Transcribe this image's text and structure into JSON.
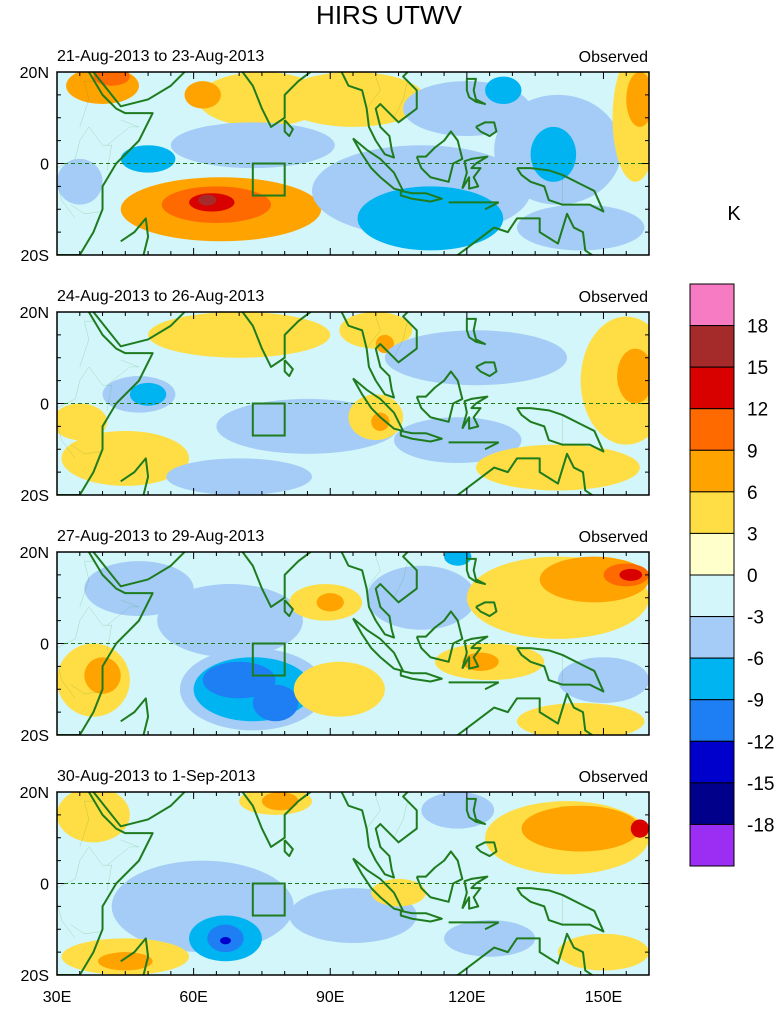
{
  "chart_data": {
    "type": "filled-contour map panels",
    "title": "HIRS UTWV",
    "unit_label": "K",
    "x_ticks": [
      "30E",
      "60E",
      "90E",
      "120E",
      "150E"
    ],
    "x_tick_values": [
      30,
      60,
      90,
      120,
      150
    ],
    "x_range": [
      30,
      160
    ],
    "y_ticks": [
      "20N",
      "0",
      "20S"
    ],
    "y_tick_values": [
      20,
      0,
      -20
    ],
    "y_range": [
      -20,
      20
    ],
    "colorbar": {
      "levels": [
        "18",
        "15",
        "12",
        "9",
        "6",
        "3",
        "0",
        "-3",
        "-6",
        "-9",
        "-12",
        "-15",
        "-18"
      ],
      "colors": [
        "#f77bc3",
        "#a52a2a",
        "#d90000",
        "#ff6a00",
        "#ffa300",
        "#ffdd44",
        "#ffffcc",
        "#d2f6f9",
        "#a4ccf6",
        "#00b4f2",
        "#1e7ff5",
        "#0000cd",
        "#00008b",
        "#9b2ef2"
      ]
    },
    "panels": [
      {
        "period": "21-Aug-2013 to 23-Aug-2013",
        "tag": "Observed"
      },
      {
        "period": "24-Aug-2013 to 26-Aug-2013",
        "tag": "Observed"
      },
      {
        "period": "27-Aug-2013 to 29-Aug-2013",
        "tag": "Observed"
      },
      {
        "period": "30-Aug-2013 to 1-Sep-2013",
        "tag": "Observed"
      }
    ],
    "box_region": {
      "lon": [
        73,
        80
      ],
      "lat": [
        -7,
        0
      ]
    },
    "anomaly_blobs": [
      [
        {
          "lon": 40,
          "lat": 17,
          "rx": 8,
          "ry": 4,
          "v": 6
        },
        {
          "lon": 42,
          "lat": 19,
          "rx": 4,
          "ry": 2,
          "v": 9
        },
        {
          "lon": 75,
          "lat": 14,
          "rx": 14,
          "ry": 6,
          "v": 3
        },
        {
          "lon": 62,
          "lat": 15,
          "rx": 4,
          "ry": 3,
          "v": 6
        },
        {
          "lon": 73,
          "lat": 4,
          "rx": 18,
          "ry": 5,
          "v": -3
        },
        {
          "lon": 50,
          "lat": 1,
          "rx": 6,
          "ry": 3,
          "v": -6
        },
        {
          "lon": 35,
          "lat": -4,
          "rx": 5,
          "ry": 5,
          "v": -3
        },
        {
          "lon": 66,
          "lat": -10,
          "rx": 22,
          "ry": 7,
          "v": 6
        },
        {
          "lon": 65,
          "lat": -9,
          "rx": 12,
          "ry": 4,
          "v": 9
        },
        {
          "lon": 64,
          "lat": -8.5,
          "rx": 5,
          "ry": 2,
          "v": 12
        },
        {
          "lon": 63,
          "lat": -8,
          "rx": 2,
          "ry": 1.2,
          "v": 15
        },
        {
          "lon": 110,
          "lat": -6,
          "rx": 24,
          "ry": 10,
          "v": -3
        },
        {
          "lon": 112,
          "lat": -12,
          "rx": 16,
          "ry": 7,
          "v": -6
        },
        {
          "lon": 95,
          "lat": 14,
          "rx": 16,
          "ry": 6,
          "v": 3
        },
        {
          "lon": 120,
          "lat": 12,
          "rx": 14,
          "ry": 6,
          "v": -3
        },
        {
          "lon": 140,
          "lat": 3,
          "rx": 14,
          "ry": 12,
          "v": -3
        },
        {
          "lon": 139,
          "lat": 2,
          "rx": 5,
          "ry": 6,
          "v": -6
        },
        {
          "lon": 157,
          "lat": 10,
          "rx": 5,
          "ry": 14,
          "v": 3
        },
        {
          "lon": 158,
          "lat": 14,
          "rx": 3,
          "ry": 6,
          "v": 6
        },
        {
          "lon": 128,
          "lat": 16,
          "rx": 4,
          "ry": 3,
          "v": -6
        },
        {
          "lon": 145,
          "lat": -14,
          "rx": 14,
          "ry": 5,
          "v": -3
        }
      ],
      [
        {
          "lon": 70,
          "lat": 15,
          "rx": 20,
          "ry": 5,
          "v": 3
        },
        {
          "lon": 48,
          "lat": 2,
          "rx": 8,
          "ry": 4,
          "v": -3
        },
        {
          "lon": 50,
          "lat": 2,
          "rx": 4,
          "ry": 2.5,
          "v": -6
        },
        {
          "lon": 85,
          "lat": -5,
          "rx": 20,
          "ry": 6,
          "v": -3
        },
        {
          "lon": 45,
          "lat": -12,
          "rx": 14,
          "ry": 6,
          "v": 3
        },
        {
          "lon": 35,
          "lat": -4,
          "rx": 6,
          "ry": 4,
          "v": 3
        },
        {
          "lon": 100,
          "lat": -3,
          "rx": 6,
          "ry": 5,
          "v": 3
        },
        {
          "lon": 101,
          "lat": -4,
          "rx": 2,
          "ry": 2,
          "v": 6
        },
        {
          "lon": 100,
          "lat": 16,
          "rx": 8,
          "ry": 4,
          "v": 3
        },
        {
          "lon": 102,
          "lat": 13,
          "rx": 2,
          "ry": 2,
          "v": 6
        },
        {
          "lon": 122,
          "lat": 10,
          "rx": 20,
          "ry": 6,
          "v": -3
        },
        {
          "lon": 118,
          "lat": -8,
          "rx": 14,
          "ry": 5,
          "v": -3
        },
        {
          "lon": 155,
          "lat": 5,
          "rx": 10,
          "ry": 14,
          "v": 3
        },
        {
          "lon": 157,
          "lat": 6,
          "rx": 4,
          "ry": 6,
          "v": 6
        },
        {
          "lon": 140,
          "lat": -14,
          "rx": 18,
          "ry": 5,
          "v": 3
        },
        {
          "lon": 70,
          "lat": -16,
          "rx": 16,
          "ry": 4,
          "v": -3
        }
      ],
      [
        {
          "lon": 48,
          "lat": 12,
          "rx": 12,
          "ry": 6,
          "v": -3
        },
        {
          "lon": 68,
          "lat": 5,
          "rx": 16,
          "ry": 8,
          "v": -3
        },
        {
          "lon": 73,
          "lat": -10,
          "rx": 16,
          "ry": 9,
          "v": -3
        },
        {
          "lon": 73,
          "lat": -10,
          "rx": 13,
          "ry": 7,
          "v": -6
        },
        {
          "lon": 70,
          "lat": -8,
          "rx": 8,
          "ry": 4,
          "v": -9
        },
        {
          "lon": 78,
          "lat": -13,
          "rx": 5,
          "ry": 4,
          "v": -9
        },
        {
          "lon": 38,
          "lat": -8,
          "rx": 8,
          "ry": 8,
          "v": 3
        },
        {
          "lon": 40,
          "lat": -7,
          "rx": 4,
          "ry": 4,
          "v": 6
        },
        {
          "lon": 89,
          "lat": 9,
          "rx": 8,
          "ry": 4,
          "v": 3
        },
        {
          "lon": 90,
          "lat": 9,
          "rx": 3,
          "ry": 2,
          "v": 6
        },
        {
          "lon": 92,
          "lat": -10,
          "rx": 10,
          "ry": 6,
          "v": 3
        },
        {
          "lon": 110,
          "lat": 10,
          "rx": 12,
          "ry": 7,
          "v": -3
        },
        {
          "lon": 140,
          "lat": 10,
          "rx": 20,
          "ry": 9,
          "v": 3
        },
        {
          "lon": 148,
          "lat": 14,
          "rx": 12,
          "ry": 5,
          "v": 6
        },
        {
          "lon": 155,
          "lat": 15,
          "rx": 5,
          "ry": 2.5,
          "v": 9
        },
        {
          "lon": 156,
          "lat": 15,
          "rx": 2.5,
          "ry": 1.3,
          "v": 12
        },
        {
          "lon": 125,
          "lat": -4,
          "rx": 12,
          "ry": 4,
          "v": 3
        },
        {
          "lon": 123,
          "lat": -4,
          "rx": 4,
          "ry": 2,
          "v": 6
        },
        {
          "lon": 150,
          "lat": -8,
          "rx": 10,
          "ry": 5,
          "v": -3
        },
        {
          "lon": 145,
          "lat": -17,
          "rx": 14,
          "ry": 4,
          "v": 3
        },
        {
          "lon": 118,
          "lat": 19,
          "rx": 3,
          "ry": 2,
          "v": -6
        }
      ],
      [
        {
          "lon": 38,
          "lat": 15,
          "rx": 8,
          "ry": 6,
          "v": 3
        },
        {
          "lon": 78,
          "lat": 18,
          "rx": 8,
          "ry": 3,
          "v": 3
        },
        {
          "lon": 79,
          "lat": 18,
          "rx": 4,
          "ry": 2,
          "v": 6
        },
        {
          "lon": 62,
          "lat": -5,
          "rx": 20,
          "ry": 10,
          "v": -3
        },
        {
          "lon": 67,
          "lat": -12,
          "rx": 8,
          "ry": 5,
          "v": -6
        },
        {
          "lon": 67,
          "lat": -12,
          "rx": 4,
          "ry": 3,
          "v": -9
        },
        {
          "lon": 67,
          "lat": -12.5,
          "rx": 1.2,
          "ry": 0.8,
          "v": -15
        },
        {
          "lon": 45,
          "lat": -16,
          "rx": 14,
          "ry": 4,
          "v": 3
        },
        {
          "lon": 45,
          "lat": -17,
          "rx": 6,
          "ry": 2,
          "v": 6
        },
        {
          "lon": 95,
          "lat": -7,
          "rx": 14,
          "ry": 6,
          "v": -3
        },
        {
          "lon": 105,
          "lat": -2,
          "rx": 6,
          "ry": 3,
          "v": 3
        },
        {
          "lon": 142,
          "lat": 10,
          "rx": 18,
          "ry": 8,
          "v": 3
        },
        {
          "lon": 145,
          "lat": 12,
          "rx": 13,
          "ry": 5,
          "v": 6
        },
        {
          "lon": 158,
          "lat": 12,
          "rx": 2,
          "ry": 2,
          "v": 12
        },
        {
          "lon": 125,
          "lat": -12,
          "rx": 10,
          "ry": 4,
          "v": -3
        },
        {
          "lon": 150,
          "lat": -15,
          "rx": 10,
          "ry": 4,
          "v": 3
        },
        {
          "lon": 118,
          "lat": 16,
          "rx": 8,
          "ry": 4,
          "v": -3
        }
      ]
    ]
  }
}
